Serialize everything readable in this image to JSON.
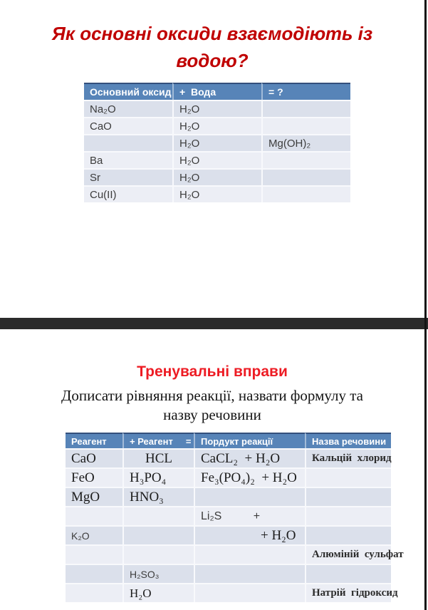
{
  "colors": {
    "slide1_title_red": "#c00000",
    "slide2_title_red": "#ed1c24",
    "table_header_blue": "#5784b8",
    "table_row_odd": "#dbe0eb",
    "table_row_even": "#eceef5",
    "divider_dark": "#2b2b2b"
  },
  "slide1": {
    "title_lines": [
      "Як основні оксиди взаємодіють із",
      "водою?"
    ],
    "table": {
      "headers": [
        "Основний оксид",
        "+  Вода",
        "= ?"
      ],
      "rows": [
        [
          "Na₂O",
          "H₂O",
          ""
        ],
        [
          "CaO",
          "H₂O",
          ""
        ],
        [
          "",
          "H₂O",
          "Mg(OH)₂"
        ],
        [
          "Ba",
          "H₂O",
          ""
        ],
        [
          "Sr",
          "H₂O",
          ""
        ],
        [
          "Cu(II)",
          "H₂O",
          ""
        ]
      ]
    }
  },
  "slide2": {
    "title": "Тренувальні вправи",
    "subtitle_lines": [
      "Дописати рівняння реакції, назвати формулу та",
      "назву речовини"
    ],
    "table": {
      "headers": [
        "Реагент",
        "+ Реагент     =",
        "Пордукт реакції",
        "Назва речовини"
      ],
      "rows": [
        [
          "CaO",
          "HCL",
          "CaCL₂  + H₂O",
          "Кальцій  хлорид"
        ],
        [
          "FeO",
          "H₃PO₄",
          "Fe₃(PO₄)₂  + H₂O",
          ""
        ],
        [
          "MgO",
          "HNO₃",
          "",
          ""
        ],
        [
          "",
          "",
          "Li₂S          +",
          ""
        ],
        [
          "K₂O",
          "",
          "+ H₂O",
          ""
        ],
        [
          "",
          "",
          "",
          "Алюміній  сульфат"
        ],
        [
          "",
          "H₂SO₃",
          "",
          ""
        ],
        [
          "",
          "H₂O",
          "",
          "Натрій  гідроксид"
        ]
      ]
    }
  }
}
